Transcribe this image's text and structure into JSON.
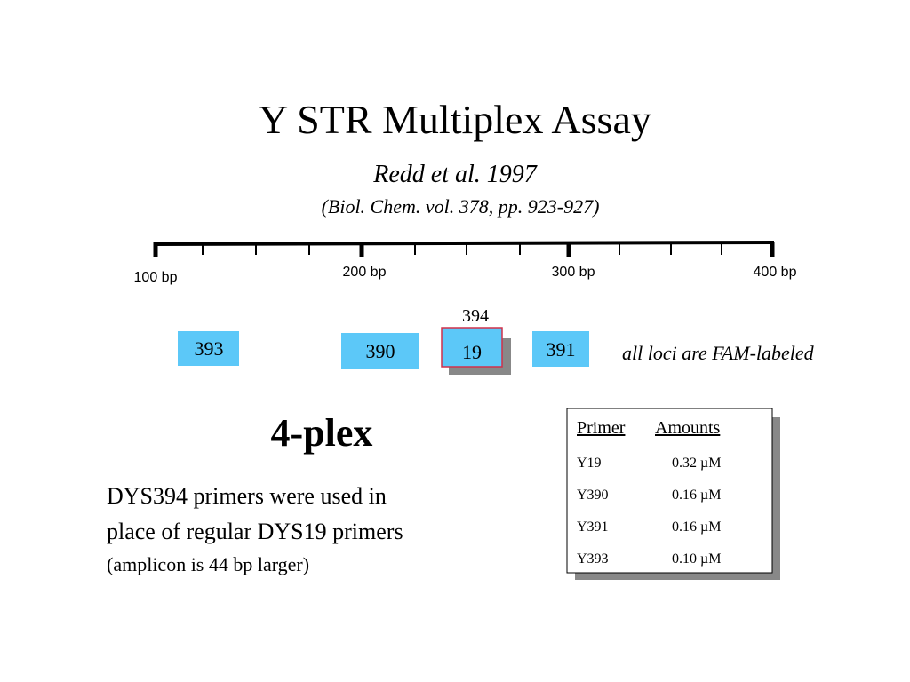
{
  "header": {
    "title": "Y STR Multiplex Assay",
    "subtitle": "Redd et al. 1997",
    "citation": "(Biol. Chem. vol. 378, pp. 923-927)"
  },
  "ruler": {
    "labels": [
      "100 bp",
      "200 bp",
      "300 bp",
      "400 bp"
    ]
  },
  "loci": [
    {
      "label": "393"
    },
    {
      "label": "390"
    },
    {
      "label": "19",
      "above": "394"
    },
    {
      "label": "391"
    }
  ],
  "annotation": "all loci are FAM-labeled",
  "heading": "4-plex",
  "body": {
    "lines": [
      "DYS394 primers were used in",
      "place of regular DYS19 primers"
    ],
    "note": "(amplicon is 44 bp larger)"
  },
  "table": {
    "columns": [
      "Primer",
      "Amounts"
    ],
    "rows": [
      [
        "Y19",
        "0.32 µM"
      ],
      [
        "Y390",
        "0.16 µM"
      ],
      [
        "Y391",
        "0.16 µM"
      ],
      [
        "Y393",
        "0.10 µM"
      ]
    ]
  }
}
